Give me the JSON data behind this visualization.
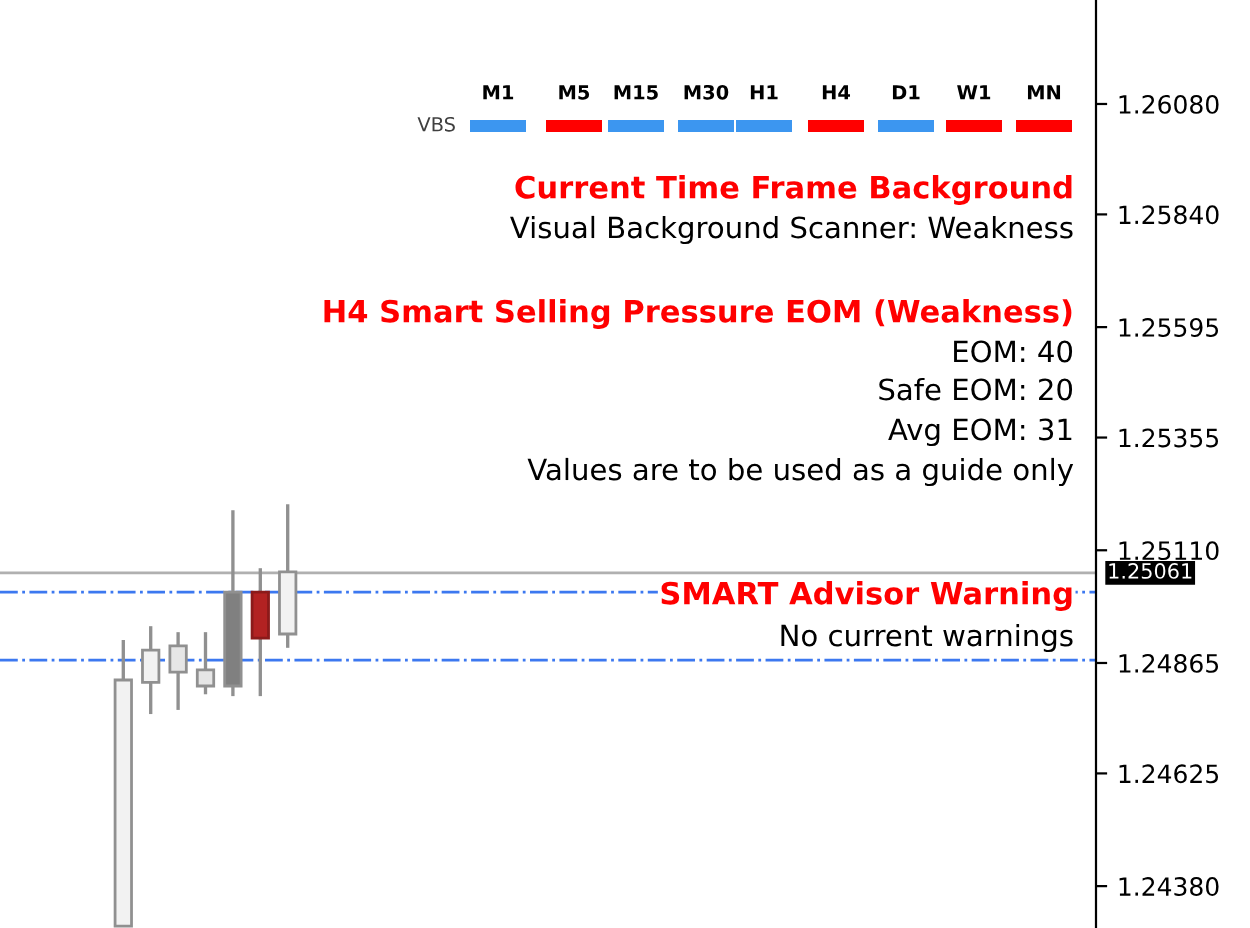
{
  "chart_data": {
    "type": "candlestick",
    "categories": [
      null,
      null,
      null,
      null,
      null,
      null,
      null,
      null,
      null,
      null,
      null,
      null,
      null,
      null,
      null,
      null,
      null,
      null,
      null,
      null,
      null,
      null,
      null,
      null,
      null,
      null,
      null,
      null,
      null,
      null,
      null,
      null,
      null,
      null,
      null,
      null,
      null,
      null,
      null,
      null
    ],
    "ohlc": [
      null,
      null,
      null,
      null,
      [
        1.24293,
        1.24915,
        1.24293,
        1.24828
      ],
      [
        1.24823,
        1.24945,
        1.24754,
        1.24893
      ],
      [
        1.24845,
        1.24932,
        1.24763,
        1.24902
      ],
      [
        1.24815,
        1.24932,
        1.24797,
        1.2485
      ],
      [
        1.24815,
        1.25197,
        1.24793,
        1.25019
      ],
      [
        1.25019,
        1.25071,
        1.24793,
        1.24919
      ],
      [
        1.24928,
        1.2521,
        1.24898,
        1.25063
      ],
      null,
      null,
      null,
      null,
      null,
      null,
      null,
      null,
      null,
      null,
      null,
      null,
      null,
      null,
      null,
      null,
      null,
      null,
      null,
      null,
      null,
      null,
      null,
      null,
      null,
      null,
      null,
      null,
      null
    ],
    "colors": [
      "#ffffff",
      "#ffffff",
      "#ffffff",
      "#ffffff",
      "#f2f2f2",
      "#f2f2f2",
      "#e6e6e6",
      "#e6e6e6",
      "#808080",
      "#b22222",
      "#f2f2f2",
      null,
      null,
      null,
      null,
      null,
      null,
      null,
      null,
      null,
      null,
      null,
      null,
      null,
      null,
      null,
      null,
      null,
      null,
      null,
      null,
      null,
      null,
      null,
      null,
      null,
      null,
      null,
      null,
      null
    ],
    "ylim": [
      1.24289,
      1.26306
    ],
    "yticks": [
      {
        "value": 1.2438,
        "label": "1.24380"
      },
      1.24625,
      1.24865,
      {
        "value": 1.2511,
        "label": "1.25110"
      },
      1.25355,
      1.25595,
      {
        "value": 1.2584,
        "label": "1.25840"
      },
      {
        "value": 1.2608,
        "label": "1.26080"
      }
    ],
    "tick_labels": "y",
    "grid": false,
    "legend": false,
    "ref_lines": [
      {
        "axis": "y",
        "value": 1.25061,
        "label": "1.25061",
        "color": "#b0b0b0",
        "line_style": "solid"
      },
      {
        "axis": "y",
        "value": 1.25019,
        "color": "#3c78f0",
        "line_style": "dashdot"
      },
      {
        "axis": "y",
        "value": 1.24871,
        "color": "#3c78f0",
        "line_style": "dashdot"
      }
    ],
    "annotations": [
      "VBS",
      "M1",
      "M5",
      "M15",
      "M30",
      "H1",
      "H4",
      "D1",
      "W1",
      "MN",
      "Current Time Frame Background",
      "Visual Background Scanner: Weakness",
      "H4 Smart Selling Pressure EOM (Weakness)",
      "EOM: 40",
      "Safe EOM: 20",
      "Avg EOM: 31",
      "Values are to be used as a guide only",
      "SMART Advisor Warning",
      "No current warnings"
    ]
  }
}
